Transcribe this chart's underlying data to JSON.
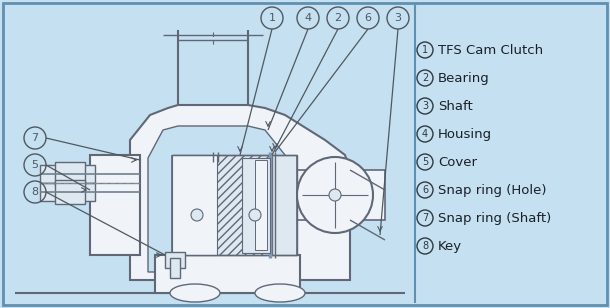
{
  "bg_color": "#c5e0f0",
  "border_color": "#6090b0",
  "line_color": "#606878",
  "legend_items": [
    {
      "num": "1",
      "text": "TFS Cam Clutch"
    },
    {
      "num": "2",
      "text": "Bearing"
    },
    {
      "num": "3",
      "text": "Shaft"
    },
    {
      "num": "4",
      "text": "Housing"
    },
    {
      "num": "5",
      "text": "Cover"
    },
    {
      "num": "6",
      "text": "Snap ring (Hole)"
    },
    {
      "num": "7",
      "text": "Snap ring (Shaft)"
    },
    {
      "num": "8",
      "text": "Key"
    }
  ]
}
